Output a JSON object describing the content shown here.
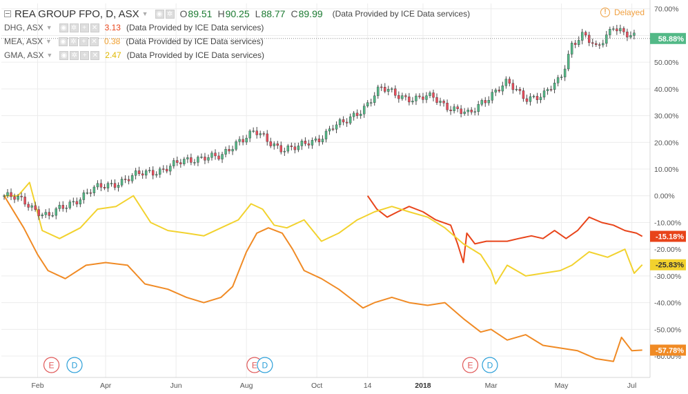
{
  "legend": {
    "main": {
      "title": "REA GROUP FPO, D, ASX",
      "ohlc": [
        {
          "k": "O",
          "v": "89.51"
        },
        {
          "k": "H",
          "v": "90.25"
        },
        {
          "k": "L",
          "v": "88.77"
        },
        {
          "k": "C",
          "v": "89.99"
        }
      ],
      "provider": "(Data Provided by ICE Data services)"
    },
    "series": [
      {
        "title": "DHG, ASX",
        "value": "3.13",
        "provider": "(Data Provided by ICE Data services)",
        "color": "#e8441a"
      },
      {
        "title": "MEA, ASX",
        "value": "0.38",
        "provider": "(Data Provided by ICE Data services)",
        "color": "#f0a030"
      },
      {
        "title": "GMA, ASX",
        "value": "2.47",
        "provider": "(Data Provided by ICE Data services)",
        "color": "#ecc800"
      }
    ]
  },
  "status": {
    "delayed": "Delayed",
    "icon": "exclamation-icon"
  },
  "colors": {
    "up": "#53b987",
    "down": "#eb4d5c",
    "wick": "#444444",
    "dhg": "#e8441a",
    "mea": "#f08a24",
    "gma": "#f2d22e",
    "grid": "#ececec",
    "axis_text": "#555555"
  },
  "chart_data": {
    "type": "line",
    "y_unit": "%",
    "ylim": [
      -68,
      72
    ],
    "y_ticks": [
      "70.00%",
      "60.00%",
      "50.00%",
      "40.00%",
      "30.00%",
      "20.00%",
      "10.00%",
      "0.00%",
      "-10.00%",
      "-20.00%",
      "-30.00%",
      "-40.00%",
      "-50.00%",
      "-60.00%"
    ],
    "y_tick_values": [
      70,
      60,
      50,
      40,
      30,
      20,
      10,
      0,
      -10,
      -20,
      -30,
      -40,
      -50,
      -60
    ],
    "x_ticks": [
      "Feb",
      "Apr",
      "Jun",
      "Aug",
      "Oct",
      "14",
      "2018",
      "Mar",
      "May",
      "Jul"
    ],
    "x_tick_dates": [
      "2017-02-01",
      "2017-04-01",
      "2017-06-01",
      "2017-08-01",
      "2017-10-01",
      "2017-11-14",
      "2018-01-01",
      "2018-03-01",
      "2018-05-01",
      "2018-07-01"
    ],
    "x_range": [
      "2017-01-03",
      "2018-07-12"
    ],
    "grid": true,
    "series": [
      {
        "name": "REA GROUP FPO, D, ASX",
        "style": "candles",
        "last_label": "58.88%",
        "points": [
          [
            "2017-01-03",
            0
          ],
          [
            "2017-01-20",
            -2
          ],
          [
            "2017-02-10",
            -8
          ],
          [
            "2017-02-28",
            -3
          ],
          [
            "2017-03-20",
            2
          ],
          [
            "2017-04-10",
            5
          ],
          [
            "2017-05-01",
            8
          ],
          [
            "2017-05-20",
            10
          ],
          [
            "2017-06-10",
            13
          ],
          [
            "2017-06-25",
            15
          ],
          [
            "2017-07-10",
            14
          ],
          [
            "2017-07-25",
            21
          ],
          [
            "2017-08-08",
            24
          ],
          [
            "2017-08-20",
            20
          ],
          [
            "2017-09-01",
            18
          ],
          [
            "2017-09-15",
            18
          ],
          [
            "2017-10-01",
            21
          ],
          [
            "2017-10-15",
            26
          ],
          [
            "2017-10-25",
            27
          ],
          [
            "2017-11-10",
            33
          ],
          [
            "2017-11-25",
            40
          ],
          [
            "2017-12-10",
            38
          ],
          [
            "2017-12-25",
            36
          ],
          [
            "2018-01-10",
            37
          ],
          [
            "2018-01-25",
            33
          ],
          [
            "2018-02-10",
            30
          ],
          [
            "2018-02-20",
            35
          ],
          [
            "2018-03-01",
            38
          ],
          [
            "2018-03-15",
            42
          ],
          [
            "2018-03-31",
            37
          ],
          [
            "2018-04-15",
            37
          ],
          [
            "2018-04-30",
            44
          ],
          [
            "2018-05-10",
            57
          ],
          [
            "2018-05-20",
            60
          ],
          [
            "2018-05-31",
            55
          ],
          [
            "2018-06-15",
            64
          ],
          [
            "2018-06-25",
            60
          ],
          [
            "2018-07-05",
            58.88
          ]
        ]
      },
      {
        "name": "DHG, ASX",
        "style": "line",
        "color_key": "dhg",
        "last_label": "-15.18%",
        "points": [
          [
            "2017-11-14",
            0
          ],
          [
            "2017-11-22",
            -5
          ],
          [
            "2017-12-01",
            -8
          ],
          [
            "2017-12-10",
            -6
          ],
          [
            "2017-12-20",
            -4
          ],
          [
            "2018-01-01",
            -6
          ],
          [
            "2018-01-12",
            -9
          ],
          [
            "2018-01-25",
            -11
          ],
          [
            "2018-01-31",
            -18
          ],
          [
            "2018-02-05",
            -25
          ],
          [
            "2018-02-08",
            -14
          ],
          [
            "2018-02-15",
            -18
          ],
          [
            "2018-02-25",
            -17
          ],
          [
            "2018-03-05",
            -17
          ],
          [
            "2018-03-15",
            -17
          ],
          [
            "2018-03-25",
            -16
          ],
          [
            "2018-04-05",
            -15
          ],
          [
            "2018-04-15",
            -16
          ],
          [
            "2018-04-25",
            -13
          ],
          [
            "2018-05-05",
            -16
          ],
          [
            "2018-05-15",
            -13
          ],
          [
            "2018-05-25",
            -8
          ],
          [
            "2018-06-05",
            -10
          ],
          [
            "2018-06-15",
            -11
          ],
          [
            "2018-06-25",
            -13
          ],
          [
            "2018-07-05",
            -14
          ],
          [
            "2018-07-10",
            -15.18
          ]
        ]
      },
      {
        "name": "GMA, ASX",
        "style": "line",
        "color_key": "gma",
        "last_label": "-25.83%",
        "points": [
          [
            "2017-01-03",
            0
          ],
          [
            "2017-01-15",
            0
          ],
          [
            "2017-01-25",
            5
          ],
          [
            "2017-02-05",
            -13
          ],
          [
            "2017-02-20",
            -16
          ],
          [
            "2017-03-10",
            -12
          ],
          [
            "2017-03-25",
            -5
          ],
          [
            "2017-04-10",
            -4
          ],
          [
            "2017-04-25",
            0
          ],
          [
            "2017-05-10",
            -10
          ],
          [
            "2017-05-25",
            -13
          ],
          [
            "2017-06-10",
            -14
          ],
          [
            "2017-06-25",
            -15
          ],
          [
            "2017-07-10",
            -12
          ],
          [
            "2017-07-25",
            -9
          ],
          [
            "2017-08-05",
            -3
          ],
          [
            "2017-08-15",
            -5
          ],
          [
            "2017-08-25",
            -11
          ],
          [
            "2017-09-05",
            -12
          ],
          [
            "2017-09-20",
            -9
          ],
          [
            "2017-10-05",
            -17
          ],
          [
            "2017-10-20",
            -14
          ],
          [
            "2017-11-05",
            -9
          ],
          [
            "2017-11-20",
            -6
          ],
          [
            "2017-12-05",
            -4
          ],
          [
            "2017-12-20",
            -6
          ],
          [
            "2018-01-05",
            -8
          ],
          [
            "2018-01-20",
            -12
          ],
          [
            "2018-02-05",
            -18
          ],
          [
            "2018-02-20",
            -22
          ],
          [
            "2018-03-01",
            -28
          ],
          [
            "2018-03-05",
            -33
          ],
          [
            "2018-03-15",
            -26
          ],
          [
            "2018-03-31",
            -30
          ],
          [
            "2018-04-15",
            -29
          ],
          [
            "2018-04-30",
            -28
          ],
          [
            "2018-05-10",
            -26
          ],
          [
            "2018-05-25",
            -21
          ],
          [
            "2018-06-10",
            -23
          ],
          [
            "2018-06-25",
            -20
          ],
          [
            "2018-07-03",
            -29
          ],
          [
            "2018-07-10",
            -25.83
          ]
        ]
      },
      {
        "name": "MEA, ASX",
        "style": "line",
        "color_key": "mea",
        "last_label": "-57.78%",
        "points": [
          [
            "2017-01-03",
            0
          ],
          [
            "2017-01-20",
            -12
          ],
          [
            "2017-02-01",
            -22
          ],
          [
            "2017-02-10",
            -28
          ],
          [
            "2017-02-25",
            -31
          ],
          [
            "2017-03-15",
            -26
          ],
          [
            "2017-04-01",
            -25
          ],
          [
            "2017-04-20",
            -26
          ],
          [
            "2017-05-05",
            -33
          ],
          [
            "2017-05-25",
            -35
          ],
          [
            "2017-06-10",
            -38
          ],
          [
            "2017-06-25",
            -40
          ],
          [
            "2017-07-10",
            -38
          ],
          [
            "2017-07-20",
            -34
          ],
          [
            "2017-08-01",
            -21
          ],
          [
            "2017-08-10",
            -14
          ],
          [
            "2017-08-20",
            -12
          ],
          [
            "2017-09-01",
            -14
          ],
          [
            "2017-09-10",
            -20
          ],
          [
            "2017-09-20",
            -28
          ],
          [
            "2017-10-05",
            -31
          ],
          [
            "2017-10-20",
            -35
          ],
          [
            "2017-11-01",
            -39
          ],
          [
            "2017-11-10",
            -42
          ],
          [
            "2017-11-20",
            -40
          ],
          [
            "2017-12-05",
            -38
          ],
          [
            "2017-12-20",
            -40
          ],
          [
            "2018-01-05",
            -41
          ],
          [
            "2018-01-20",
            -40
          ],
          [
            "2018-02-05",
            -46
          ],
          [
            "2018-02-20",
            -51
          ],
          [
            "2018-03-01",
            -50
          ],
          [
            "2018-03-15",
            -54
          ],
          [
            "2018-03-31",
            -52
          ],
          [
            "2018-04-15",
            -56
          ],
          [
            "2018-04-30",
            -57
          ],
          [
            "2018-05-15",
            -58
          ],
          [
            "2018-05-31",
            -61
          ],
          [
            "2018-06-15",
            -62
          ],
          [
            "2018-06-22",
            -53
          ],
          [
            "2018-07-01",
            -58
          ],
          [
            "2018-07-10",
            -57.78
          ]
        ]
      }
    ],
    "events": [
      {
        "label": "E",
        "date": "2017-02-13",
        "color": "#e05858"
      },
      {
        "label": "D",
        "date": "2017-03-05",
        "color": "#2b9fd8"
      },
      {
        "label": "E",
        "date": "2017-08-08",
        "color": "#e05858"
      },
      {
        "label": "D",
        "date": "2017-08-17",
        "color": "#2b9fd8"
      },
      {
        "label": "E",
        "date": "2018-02-11",
        "color": "#e05858"
      },
      {
        "label": "D",
        "date": "2018-02-28",
        "color": "#2b9fd8"
      }
    ]
  }
}
